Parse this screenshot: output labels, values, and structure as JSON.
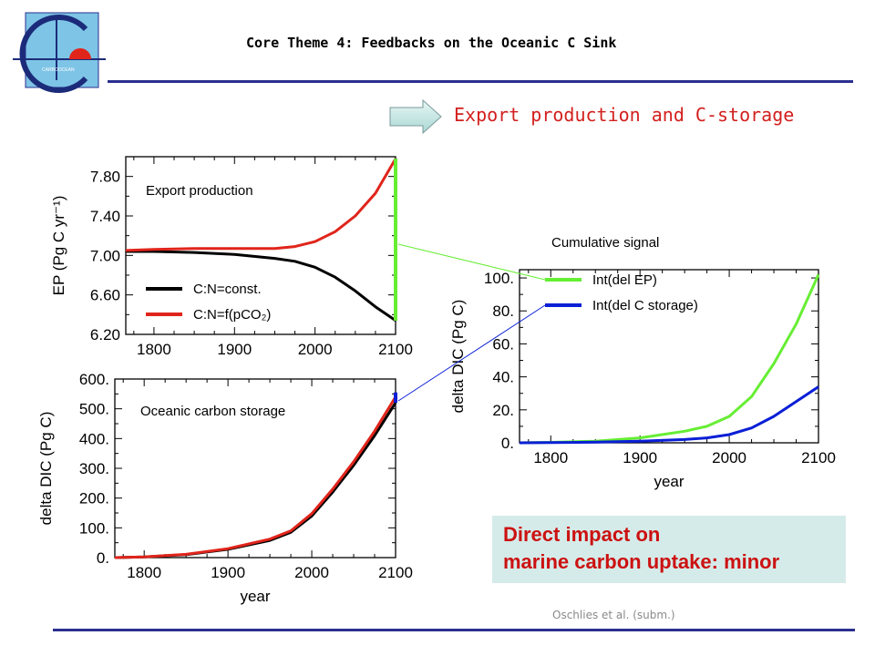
{
  "header": {
    "title": "Core Theme 4: Feedbacks on the Oceanic C Sink",
    "logo_text": "CARBOOCEAN"
  },
  "section": {
    "title": "Export production and C-storage"
  },
  "note": {
    "line1": "Direct impact on",
    "line2": "marine carbon uptake: minor"
  },
  "citation": "Oschlies et al. (subm.)",
  "colors": {
    "accent_red": "#d2201e",
    "navy_rule": "#2b2f8f",
    "note_bg": "#d5ebe9",
    "green": "#66ee33",
    "blue": "#0a1fd6"
  },
  "chart_data": [
    {
      "type": "line",
      "title": "Export production",
      "ylabel": "EP (Pg C yr⁻¹)",
      "xlabel": "",
      "xlim": [
        1765,
        2100
      ],
      "ylim": [
        6.2,
        8.0
      ],
      "xticks": [
        "1800",
        "1900",
        "2000",
        "2100"
      ],
      "yticks": [
        "6.20",
        "6.60",
        "7.00",
        "7.40",
        "7.80"
      ],
      "legend": [
        "C:N=const.",
        "C:N=f(pCO₂)"
      ],
      "legend_position": "bottom-left",
      "series": [
        {
          "name": "C:N=const.",
          "color": "#000000",
          "x": [
            1765,
            1800,
            1850,
            1900,
            1950,
            1975,
            2000,
            2025,
            2050,
            2075,
            2100
          ],
          "y": [
            7.04,
            7.04,
            7.03,
            7.01,
            6.97,
            6.94,
            6.88,
            6.78,
            6.64,
            6.48,
            6.34
          ]
        },
        {
          "name": "C:N=f(pCO₂)",
          "color": "#e0251b",
          "x": [
            1765,
            1800,
            1850,
            1900,
            1950,
            1975,
            2000,
            2025,
            2050,
            2075,
            2100
          ],
          "y": [
            7.05,
            7.06,
            7.07,
            7.07,
            7.07,
            7.09,
            7.14,
            7.24,
            7.4,
            7.63,
            7.98
          ]
        }
      ],
      "marker_bar": {
        "color": "#66ee33",
        "x": 2100,
        "y_range": [
          6.34,
          7.98
        ]
      }
    },
    {
      "type": "line",
      "title": "Oceanic carbon storage",
      "ylabel": "delta DIC (Pg C)",
      "xlabel": "year",
      "xlim": [
        1765,
        2100
      ],
      "ylim": [
        0,
        600
      ],
      "xticks": [
        "1800",
        "1900",
        "2000",
        "2100"
      ],
      "yticks": [
        "0.",
        "100.",
        "200.",
        "300.",
        "400.",
        "500.",
        "600."
      ],
      "series": [
        {
          "name": "C:N=const.",
          "color": "#000000",
          "x": [
            1765,
            1800,
            1850,
            1900,
            1950,
            1975,
            2000,
            2025,
            2050,
            2075,
            2100
          ],
          "y": [
            0,
            2,
            10,
            28,
            58,
            85,
            140,
            220,
            310,
            410,
            520
          ]
        },
        {
          "name": "C:N=f(pCO₂)",
          "color": "#e0251b",
          "x": [
            1765,
            1800,
            1850,
            1900,
            1950,
            1975,
            2000,
            2025,
            2050,
            2075,
            2100
          ],
          "y": [
            0,
            2,
            11,
            30,
            62,
            90,
            148,
            230,
            322,
            425,
            540
          ]
        }
      ],
      "marker_bar": {
        "color": "#0a1fd6",
        "x": 2100,
        "y_range": [
          520,
          555
        ]
      }
    },
    {
      "type": "line",
      "title": "Cumulative signal",
      "ylabel": "delta DIC (Pg C)",
      "xlabel": "year",
      "xlim": [
        1765,
        2100
      ],
      "ylim": [
        0,
        105
      ],
      "xticks": [
        "1800",
        "1900",
        "2000",
        "2100"
      ],
      "yticks": [
        "0.",
        "20.",
        "40.",
        "60.",
        "80.",
        "100."
      ],
      "legend": [
        "Int(del EP)",
        "Int(del C storage)"
      ],
      "legend_position": "top-left",
      "series": [
        {
          "name": "Int(del EP)",
          "color": "#66ee33",
          "x": [
            1765,
            1800,
            1850,
            1900,
            1950,
            1975,
            2000,
            2025,
            2050,
            2075,
            2100
          ],
          "y": [
            0,
            0.3,
            1,
            3,
            7,
            10,
            16,
            28,
            48,
            72,
            102
          ]
        },
        {
          "name": "Int(del C storage)",
          "color": "#0a1fd6",
          "x": [
            1765,
            1800,
            1850,
            1900,
            1950,
            1975,
            2000,
            2025,
            2050,
            2075,
            2100
          ],
          "y": [
            0,
            0.1,
            0.4,
            1,
            2,
            3,
            5,
            9,
            16,
            25,
            34
          ]
        }
      ]
    }
  ]
}
